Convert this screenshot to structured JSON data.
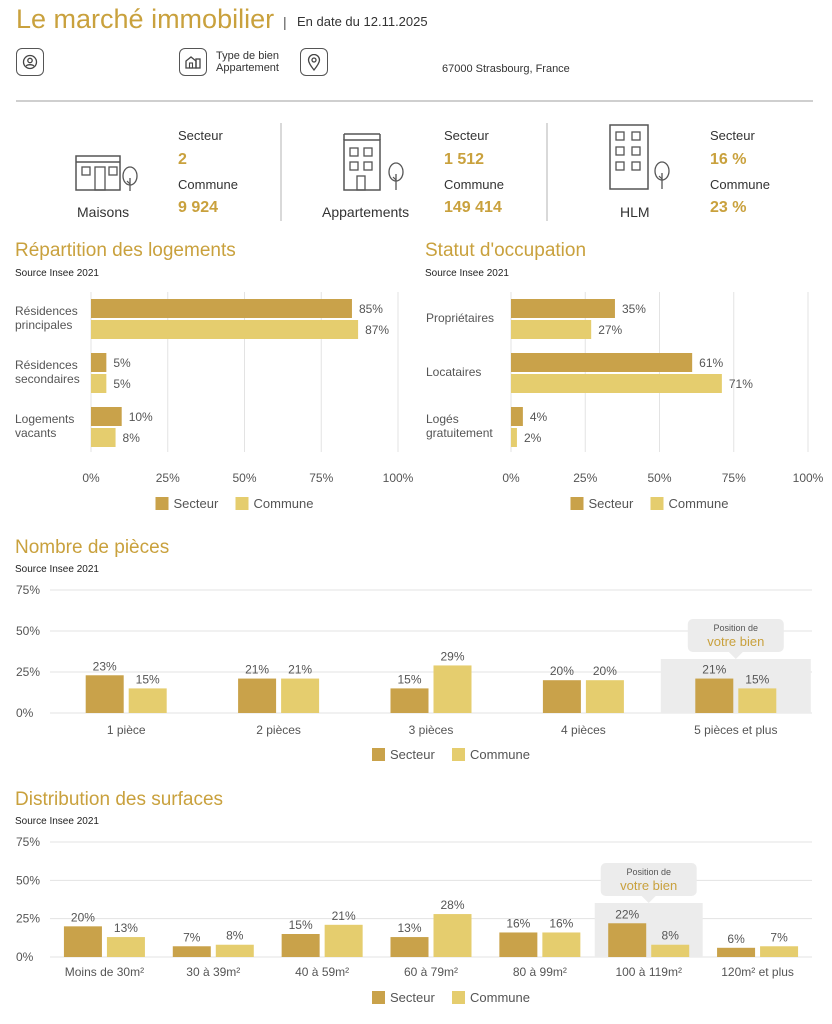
{
  "header": {
    "title": "Le marché immobilier",
    "separator": "|",
    "date": "En date du 12.11.2025",
    "property_type_label": "Type de bien",
    "property_type_value": "Appartement",
    "address": "67000 Strasbourg, France"
  },
  "stats": [
    {
      "category": "Maisons",
      "icon": "house-icon",
      "secteur_label": "Secteur",
      "secteur_value": "2",
      "commune_label": "Commune",
      "commune_value": "9 924"
    },
    {
      "category": "Appartements",
      "icon": "apartment-building-icon",
      "secteur_label": "Secteur",
      "secteur_value": "1 512",
      "commune_label": "Commune",
      "commune_value": "149 414"
    },
    {
      "category": "HLM",
      "icon": "tower-building-icon",
      "secteur_label": "Secteur",
      "secteur_value": "16 %",
      "commune_label": "Commune",
      "commune_value": "23 %"
    }
  ],
  "colors": {
    "secteur": "#c9a24a",
    "commune": "#e5cd6e",
    "accent": "#c9a13d",
    "highlight": "#ececec",
    "grid": "#e3e3e3"
  },
  "chart_data": [
    {
      "type": "bar",
      "orientation": "horizontal",
      "title": "Répartition des logements",
      "source": "Source Insee 2021",
      "categories": [
        "Résidences principales",
        "Résidences secondaires",
        "Logements vacants"
      ],
      "category_lines": [
        [
          "Résidences",
          "principales"
        ],
        [
          "Résidences",
          "secondaires"
        ],
        [
          "Logements",
          "vacants"
        ]
      ],
      "series": [
        {
          "name": "Secteur",
          "values": [
            85,
            5,
            10
          ]
        },
        {
          "name": "Commune",
          "values": [
            87,
            5,
            8
          ]
        }
      ],
      "xlim": [
        0,
        100
      ],
      "ticks": [
        "0%",
        "25%",
        "50%",
        "75%",
        "100%"
      ],
      "legend": "bottom"
    },
    {
      "type": "bar",
      "orientation": "horizontal",
      "title": "Statut d'occupation",
      "source": "Source Insee 2021",
      "categories": [
        "Propriétaires",
        "Locataires",
        "Logés gratuitement"
      ],
      "category_lines": [
        [
          "Propriétaires"
        ],
        [
          "Locataires"
        ],
        [
          "Logés",
          "gratuitement"
        ]
      ],
      "series": [
        {
          "name": "Secteur",
          "values": [
            35,
            61,
            4
          ]
        },
        {
          "name": "Commune",
          "values": [
            27,
            71,
            2
          ]
        }
      ],
      "xlim": [
        0,
        100
      ],
      "ticks": [
        "0%",
        "25%",
        "50%",
        "75%",
        "100%"
      ],
      "legend": "bottom"
    },
    {
      "type": "bar",
      "orientation": "vertical",
      "title": "Nombre de pièces",
      "source": "Source Insee 2021",
      "categories": [
        "1 pièce",
        "2 pièces",
        "3 pièces",
        "4 pièces",
        "5 pièces et plus"
      ],
      "series": [
        {
          "name": "Secteur",
          "values": [
            23,
            21,
            15,
            20,
            21
          ]
        },
        {
          "name": "Commune",
          "values": [
            15,
            21,
            29,
            20,
            15
          ]
        }
      ],
      "ylim": [
        0,
        75
      ],
      "ticks": [
        "0%",
        "25%",
        "50%",
        "75%"
      ],
      "highlight_index": 4,
      "highlight_label_top": "Position de",
      "highlight_label_bottom": "votre bien",
      "legend": "bottom"
    },
    {
      "type": "bar",
      "orientation": "vertical",
      "title": "Distribution des surfaces",
      "source": "Source Insee 2021",
      "categories": [
        "Moins de 30m²",
        "30 à 39m²",
        "40 à 59m²",
        "60 à 79m²",
        "80 à 99m²",
        "100 à 119m²",
        "120m² et plus"
      ],
      "series": [
        {
          "name": "Secteur",
          "values": [
            20,
            7,
            15,
            13,
            16,
            22,
            6
          ]
        },
        {
          "name": "Commune",
          "values": [
            13,
            8,
            21,
            28,
            16,
            8,
            7
          ]
        }
      ],
      "ylim": [
        0,
        75
      ],
      "ticks": [
        "0%",
        "25%",
        "50%",
        "75%"
      ],
      "highlight_index": 5,
      "highlight_label_top": "Position de",
      "highlight_label_bottom": "votre bien",
      "legend": "bottom"
    }
  ]
}
